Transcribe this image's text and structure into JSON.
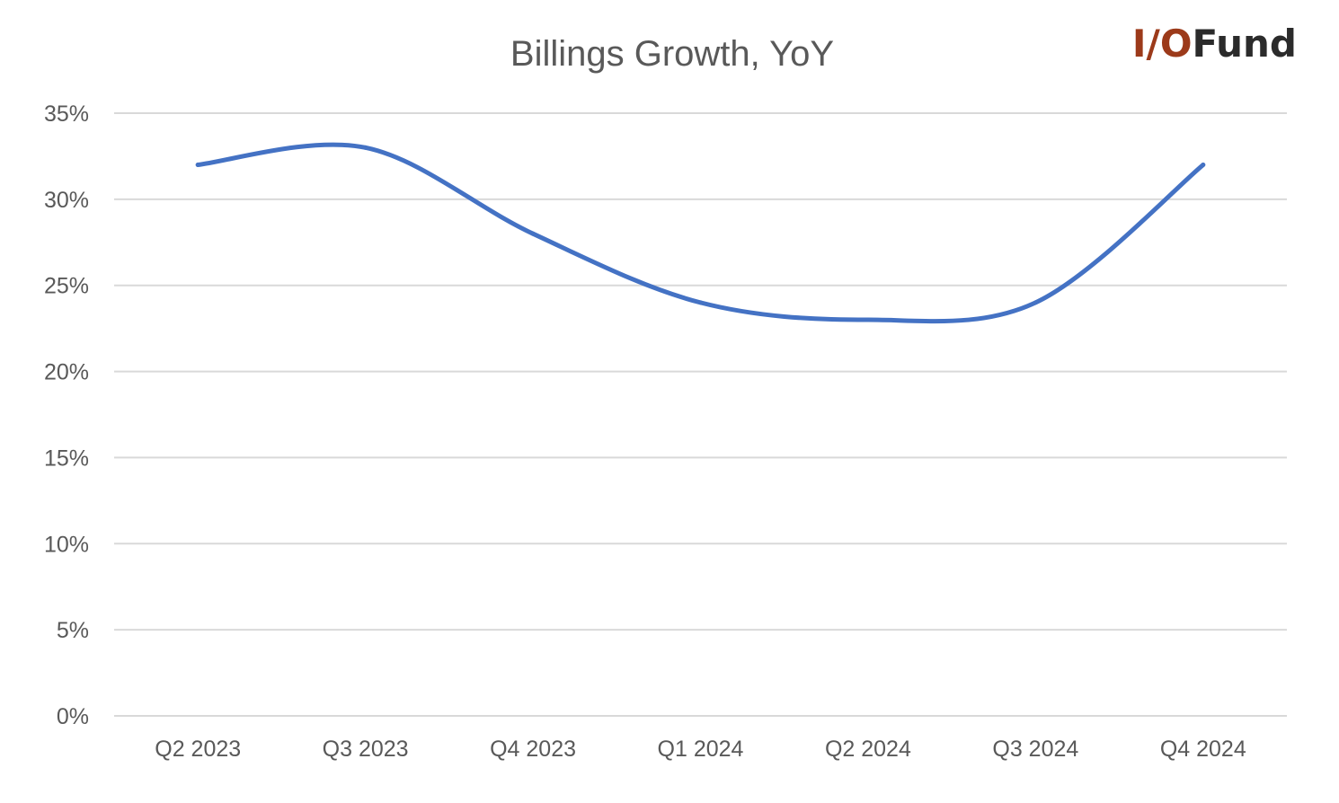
{
  "logo": {
    "prefix": "I/O",
    "suffix": "Fund",
    "prefix_color": "#9c3a1a",
    "suffix_color": "#2b2b2b"
  },
  "chart_data": {
    "type": "line",
    "title": "Billings Growth, YoY",
    "xlabel": "",
    "ylabel": "",
    "categories": [
      "Q2 2023",
      "Q3 2023",
      "Q4 2023",
      "Q1 2024",
      "Q2 2024",
      "Q3 2024",
      "Q4 2024"
    ],
    "series": [
      {
        "values": [
          32,
          33,
          28,
          24,
          23,
          24,
          32
        ],
        "color": "#4472c4"
      }
    ],
    "ylim": [
      0,
      35
    ],
    "yticks": [
      0,
      5,
      10,
      15,
      20,
      25,
      30,
      35
    ],
    "ytick_labels": [
      "0%",
      "5%",
      "10%",
      "15%",
      "20%",
      "25%",
      "30%",
      "35%"
    ],
    "grid": true,
    "smooth": true,
    "legend": "none"
  }
}
